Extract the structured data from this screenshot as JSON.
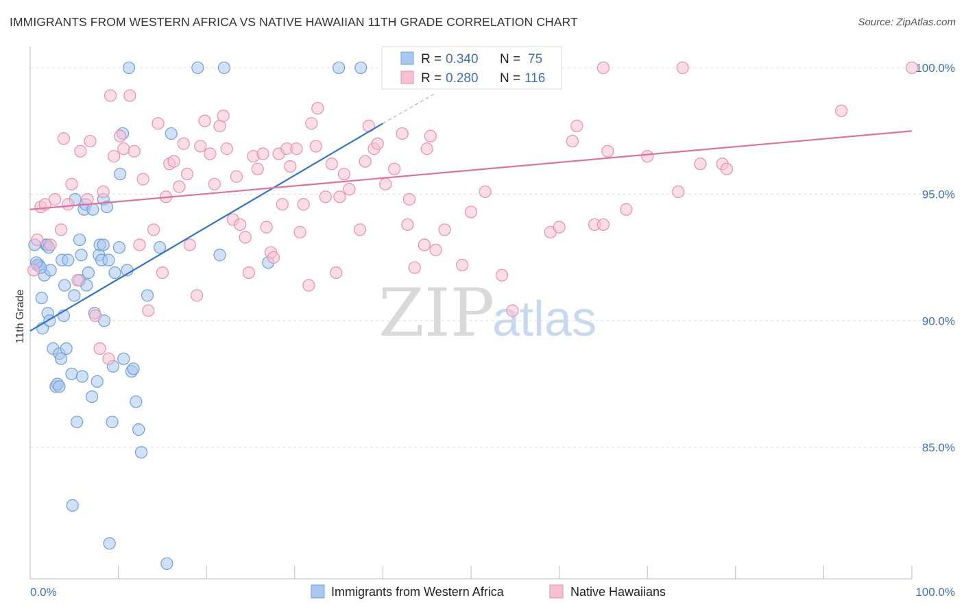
{
  "title": "IMMIGRANTS FROM WESTERN AFRICA VS NATIVE HAWAIIAN 11TH GRADE CORRELATION CHART",
  "source": "Source: ZipAtlas.com",
  "watermark": {
    "zip": "ZIP",
    "atlas": "atlas"
  },
  "legend": {
    "items": [
      {
        "r_label": "R = ",
        "r_value": "0.340",
        "n_label": "N = ",
        "n_value": "75",
        "color": "#a9c8ef",
        "stroke": "#6f9fdc"
      },
      {
        "r_label": "R = ",
        "r_value": "0.280",
        "n_label": "N = ",
        "n_value": "116",
        "color": "#f7c1d1",
        "stroke": "#eb8fad"
      }
    ]
  },
  "chart_data": {
    "type": "scatter",
    "ylabel": "11th Grade",
    "xlim": [
      0,
      100
    ],
    "ylim": [
      79.8,
      101.0
    ],
    "x_tick_labels": [
      "0.0%",
      "100.0%"
    ],
    "y_ticks": [
      {
        "value": 100.0,
        "label": "100.0%"
      },
      {
        "value": 95.0,
        "label": "95.0%"
      },
      {
        "value": 90.0,
        "label": "90.0%"
      },
      {
        "value": 85.0,
        "label": "85.0%"
      }
    ],
    "grid": "horizontal dashed",
    "series": [
      {
        "name": "Immigrants from Western Africa",
        "color": "#a9c8ef",
        "stroke": "#6f9fdc",
        "line_color": "#2e72d2",
        "trend": {
          "x0": 0.0,
          "y0": 89.6,
          "x1": 40.0,
          "y1": 97.8,
          "dash_to_x": 46.0,
          "dash_to_y": 99.0
        },
        "points": [
          [
            0.5,
            93.0
          ],
          [
            0.8,
            92.2
          ],
          [
            1.0,
            92.2
          ],
          [
            1.3,
            90.9
          ],
          [
            1.4,
            89.7
          ],
          [
            1.6,
            91.8
          ],
          [
            1.8,
            93.0
          ],
          [
            1.9,
            93.0
          ],
          [
            2.0,
            90.3
          ],
          [
            2.2,
            90.0
          ],
          [
            2.3,
            92.0
          ],
          [
            2.6,
            88.9
          ],
          [
            2.9,
            87.4
          ],
          [
            3.1,
            87.5
          ],
          [
            3.3,
            87.4
          ],
          [
            3.3,
            88.7
          ],
          [
            3.5,
            88.5
          ],
          [
            3.6,
            92.4
          ],
          [
            3.8,
            90.2
          ],
          [
            3.9,
            91.4
          ],
          [
            4.1,
            88.9
          ],
          [
            4.3,
            92.4
          ],
          [
            4.7,
            87.9
          ],
          [
            5.0,
            91.0
          ],
          [
            5.1,
            94.8
          ],
          [
            5.3,
            86.0
          ],
          [
            5.6,
            91.6
          ],
          [
            5.6,
            93.2
          ],
          [
            5.8,
            92.6
          ],
          [
            5.9,
            87.8
          ],
          [
            6.1,
            94.4
          ],
          [
            6.3,
            94.6
          ],
          [
            6.4,
            91.4
          ],
          [
            6.6,
            91.9
          ],
          [
            7.0,
            87.0
          ],
          [
            7.1,
            94.4
          ],
          [
            7.3,
            90.3
          ],
          [
            7.6,
            87.6
          ],
          [
            7.8,
            92.6
          ],
          [
            7.9,
            93.0
          ],
          [
            8.1,
            92.4
          ],
          [
            8.3,
            93.0
          ],
          [
            8.3,
            94.8
          ],
          [
            8.4,
            90.0
          ],
          [
            8.7,
            94.5
          ],
          [
            8.9,
            92.4
          ],
          [
            9.3,
            86.0
          ],
          [
            9.4,
            88.2
          ],
          [
            9.6,
            91.9
          ],
          [
            10.1,
            92.9
          ],
          [
            10.2,
            95.8
          ],
          [
            10.5,
            97.4
          ],
          [
            10.6,
            88.5
          ],
          [
            11.0,
            92.0
          ],
          [
            11.5,
            88.0
          ],
          [
            11.7,
            88.1
          ],
          [
            12.0,
            86.8
          ],
          [
            12.3,
            85.7
          ],
          [
            12.6,
            84.8
          ],
          [
            13.3,
            91.0
          ],
          [
            14.7,
            92.9
          ],
          [
            16.0,
            97.4
          ],
          [
            19.0,
            100.0
          ],
          [
            21.5,
            92.6
          ],
          [
            22.0,
            100.0
          ],
          [
            27.0,
            92.3
          ],
          [
            35.0,
            100.0
          ],
          [
            37.5,
            100.0
          ],
          [
            11.2,
            100.0
          ],
          [
            4.8,
            82.7
          ],
          [
            9.0,
            81.2
          ],
          [
            15.5,
            80.4
          ],
          [
            1.2,
            92.1
          ],
          [
            0.7,
            92.3
          ],
          [
            2.1,
            92.9
          ]
        ]
      },
      {
        "name": "Native Hawaiians",
        "color": "#f7c1d1",
        "stroke": "#eb8fad",
        "line_color": "#e2709a",
        "trend": {
          "x0": 0.0,
          "y0": 94.4,
          "x1": 100.0,
          "y1": 97.5
        },
        "points": [
          [
            0.8,
            93.2
          ],
          [
            1.2,
            94.5
          ],
          [
            1.7,
            94.6
          ],
          [
            2.3,
            93.0
          ],
          [
            2.8,
            94.8
          ],
          [
            3.5,
            93.6
          ],
          [
            3.8,
            97.2
          ],
          [
            4.3,
            94.6
          ],
          [
            4.7,
            95.4
          ],
          [
            5.4,
            91.6
          ],
          [
            5.7,
            96.7
          ],
          [
            6.5,
            94.8
          ],
          [
            6.8,
            97.1
          ],
          [
            7.4,
            90.2
          ],
          [
            7.9,
            88.9
          ],
          [
            8.3,
            95.1
          ],
          [
            8.9,
            88.5
          ],
          [
            9.1,
            98.9
          ],
          [
            9.5,
            96.5
          ],
          [
            10.2,
            97.3
          ],
          [
            10.6,
            96.8
          ],
          [
            11.3,
            98.9
          ],
          [
            11.8,
            96.7
          ],
          [
            12.4,
            93.0
          ],
          [
            12.8,
            95.6
          ],
          [
            13.4,
            90.4
          ],
          [
            14.0,
            93.6
          ],
          [
            14.5,
            97.8
          ],
          [
            15.0,
            91.9
          ],
          [
            15.4,
            94.9
          ],
          [
            15.8,
            96.2
          ],
          [
            16.3,
            96.3
          ],
          [
            16.9,
            95.3
          ],
          [
            17.4,
            97.0
          ],
          [
            17.8,
            95.8
          ],
          [
            18.1,
            93.0
          ],
          [
            18.9,
            91.0
          ],
          [
            19.3,
            96.9
          ],
          [
            19.8,
            97.9
          ],
          [
            20.4,
            96.6
          ],
          [
            20.9,
            95.4
          ],
          [
            21.5,
            97.7
          ],
          [
            21.9,
            98.1
          ],
          [
            22.3,
            96.8
          ],
          [
            23.0,
            94.0
          ],
          [
            23.4,
            95.7
          ],
          [
            23.8,
            93.8
          ],
          [
            24.4,
            93.3
          ],
          [
            24.8,
            91.9
          ],
          [
            25.3,
            96.5
          ],
          [
            25.8,
            96.0
          ],
          [
            26.4,
            96.6
          ],
          [
            26.8,
            93.7
          ],
          [
            27.3,
            92.7
          ],
          [
            27.6,
            92.5
          ],
          [
            28.2,
            96.6
          ],
          [
            28.6,
            94.6
          ],
          [
            29.1,
            96.8
          ],
          [
            29.5,
            96.1
          ],
          [
            30.2,
            96.8
          ],
          [
            30.6,
            93.5
          ],
          [
            31.0,
            94.6
          ],
          [
            31.6,
            91.4
          ],
          [
            31.9,
            97.8
          ],
          [
            32.4,
            96.9
          ],
          [
            32.6,
            98.4
          ],
          [
            33.5,
            94.9
          ],
          [
            34.2,
            96.2
          ],
          [
            34.7,
            91.9
          ],
          [
            35.1,
            94.9
          ],
          [
            35.6,
            95.8
          ],
          [
            36.2,
            95.2
          ],
          [
            37.4,
            93.6
          ],
          [
            38.0,
            96.3
          ],
          [
            38.4,
            97.7
          ],
          [
            39.0,
            96.8
          ],
          [
            39.4,
            97.0
          ],
          [
            40.3,
            95.4
          ],
          [
            41.3,
            96.0
          ],
          [
            42.2,
            97.4
          ],
          [
            42.8,
            93.8
          ],
          [
            43.0,
            94.8
          ],
          [
            43.6,
            92.1
          ],
          [
            44.7,
            93.0
          ],
          [
            45.0,
            96.8
          ],
          [
            45.4,
            97.3
          ],
          [
            46.0,
            92.8
          ],
          [
            47.0,
            93.6
          ],
          [
            49.0,
            92.2
          ],
          [
            50.0,
            94.3
          ],
          [
            51.6,
            95.1
          ],
          [
            53.5,
            91.8
          ],
          [
            54.7,
            90.4
          ],
          [
            59.0,
            93.5
          ],
          [
            60.0,
            93.7
          ],
          [
            61.5,
            97.1
          ],
          [
            62.0,
            97.7
          ],
          [
            64.0,
            93.8
          ],
          [
            65.0,
            93.8
          ],
          [
            65.5,
            96.7
          ],
          [
            67.6,
            94.4
          ],
          [
            70.0,
            96.5
          ],
          [
            73.5,
            95.1
          ],
          [
            76.0,
            96.2
          ],
          [
            78.5,
            96.2
          ],
          [
            79.0,
            96.0
          ],
          [
            92.0,
            98.3
          ],
          [
            51.0,
            100.0
          ],
          [
            55.0,
            100.0
          ],
          [
            59.5,
            100.0
          ],
          [
            65.0,
            100.0
          ],
          [
            74.0,
            100.0
          ],
          [
            100.0,
            100.0
          ],
          [
            42.0,
            100.0
          ],
          [
            58.5,
            100.0
          ],
          [
            0.4,
            92.0
          ]
        ]
      }
    ]
  }
}
